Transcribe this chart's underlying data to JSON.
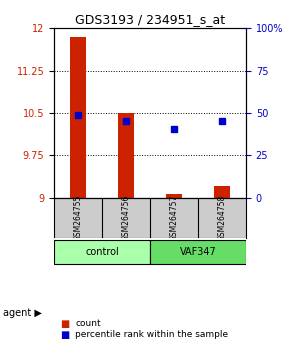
{
  "title": "GDS3193 / 234951_s_at",
  "samples": [
    "GSM264755",
    "GSM264756",
    "GSM264757",
    "GSM264758"
  ],
  "groups": [
    "control",
    "control",
    "VAF347",
    "VAF347"
  ],
  "group_labels": [
    "control",
    "VAF347"
  ],
  "group_colors": [
    "#aaffaa",
    "#55dd55"
  ],
  "red_values": [
    11.85,
    10.5,
    9.07,
    9.2
  ],
  "blue_values": [
    10.46,
    10.35,
    10.22,
    10.35
  ],
  "ylim_left": [
    9,
    12
  ],
  "yticks_left": [
    9,
    9.75,
    10.5,
    11.25,
    12
  ],
  "ylim_right": [
    0,
    100
  ],
  "yticks_right": [
    0,
    25,
    50,
    75,
    100
  ],
  "bar_color": "#cc2200",
  "dot_color": "#0000cc",
  "bar_width": 0.35,
  "bg_color": "#ffffff",
  "plot_bg": "#ffffff",
  "grid_color": "#000000",
  "legend_red": "count",
  "legend_blue": "percentile rank within the sample",
  "agent_label": "agent",
  "sample_box_color": "#cccccc"
}
